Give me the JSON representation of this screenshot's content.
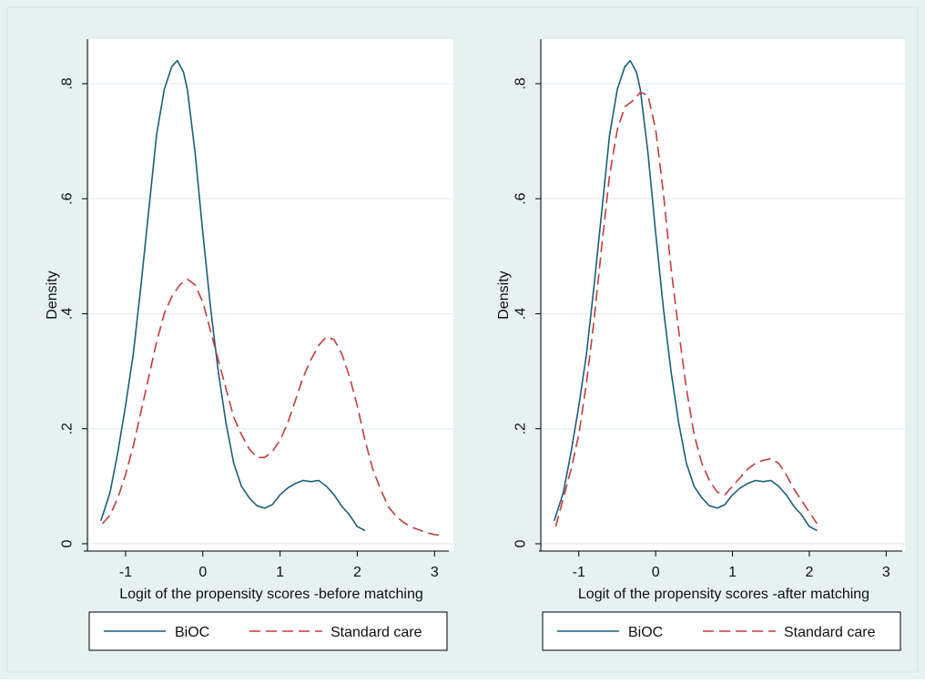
{
  "colors": {
    "outer_background": "#e6f2f2",
    "plot_background": "#ffffff",
    "grid": "#e3eeee",
    "axis": "#000000",
    "biocs": "#1a5f7a",
    "standard": "#c43c3c"
  },
  "chart_data": [
    {
      "type": "line",
      "xlabel": "Logit of the propensity scores -before matching",
      "ylabel": "Density",
      "xlim": [
        -1.4,
        3.15
      ],
      "ylim": [
        0,
        0.86
      ],
      "xticks": [
        -1,
        0,
        1,
        2,
        3
      ],
      "xtick_labels": [
        "-1",
        "0",
        "1",
        "2",
        "3"
      ],
      "yticks": [
        0,
        0.2,
        0.4,
        0.6,
        0.8
      ],
      "ytick_labels": [
        "0",
        ".2",
        ".4",
        ".6",
        ".8"
      ],
      "grid": true,
      "legend_position": "bottom",
      "series": [
        {
          "name": "BiOC",
          "style": "solid",
          "color": "#1a5f7a",
          "x": [
            -1.32,
            -1.2,
            -1.1,
            -1.0,
            -0.9,
            -0.8,
            -0.7,
            -0.6,
            -0.5,
            -0.4,
            -0.33,
            -0.25,
            -0.2,
            -0.1,
            0.0,
            0.1,
            0.2,
            0.3,
            0.4,
            0.5,
            0.6,
            0.7,
            0.8,
            0.9,
            1.0,
            1.1,
            1.2,
            1.3,
            1.4,
            1.5,
            1.6,
            1.7,
            1.8,
            1.9,
            2.0,
            2.1
          ],
          "y": [
            0.04,
            0.09,
            0.16,
            0.24,
            0.33,
            0.45,
            0.58,
            0.71,
            0.79,
            0.83,
            0.84,
            0.82,
            0.79,
            0.68,
            0.54,
            0.41,
            0.3,
            0.21,
            0.14,
            0.1,
            0.08,
            0.066,
            0.062,
            0.068,
            0.085,
            0.097,
            0.105,
            0.11,
            0.108,
            0.11,
            0.1,
            0.085,
            0.065,
            0.05,
            0.03,
            0.023
          ]
        },
        {
          "name": "Standard care",
          "style": "dashed",
          "color": "#c43c3c",
          "x": [
            -1.3,
            -1.2,
            -1.1,
            -1.0,
            -0.9,
            -0.8,
            -0.7,
            -0.6,
            -0.5,
            -0.4,
            -0.3,
            -0.2,
            -0.1,
            0.0,
            0.1,
            0.2,
            0.3,
            0.4,
            0.5,
            0.6,
            0.7,
            0.8,
            0.9,
            1.0,
            1.1,
            1.2,
            1.3,
            1.4,
            1.5,
            1.6,
            1.7,
            1.8,
            1.9,
            2.0,
            2.1,
            2.2,
            2.3,
            2.4,
            2.5,
            2.6,
            2.7,
            2.8,
            2.9,
            3.0,
            3.1
          ],
          "y": [
            0.035,
            0.05,
            0.08,
            0.12,
            0.17,
            0.23,
            0.29,
            0.35,
            0.4,
            0.43,
            0.45,
            0.46,
            0.45,
            0.42,
            0.37,
            0.32,
            0.27,
            0.22,
            0.19,
            0.165,
            0.15,
            0.15,
            0.16,
            0.18,
            0.21,
            0.25,
            0.29,
            0.32,
            0.345,
            0.36,
            0.355,
            0.33,
            0.29,
            0.24,
            0.18,
            0.13,
            0.095,
            0.065,
            0.048,
            0.037,
            0.029,
            0.024,
            0.019,
            0.016,
            0.014
          ]
        }
      ]
    },
    {
      "type": "line",
      "xlabel": "Logit of the propensity scores -after matching",
      "ylabel": "Density",
      "xlim": [
        -1.4,
        3.15
      ],
      "ylim": [
        0,
        0.86
      ],
      "xticks": [
        -1,
        0,
        1,
        2,
        3
      ],
      "xtick_labels": [
        "-1",
        "0",
        "1",
        "2",
        "3"
      ],
      "yticks": [
        0,
        0.2,
        0.4,
        0.6,
        0.8
      ],
      "ytick_labels": [
        "0",
        ".2",
        ".4",
        ".6",
        ".8"
      ],
      "grid": true,
      "legend_position": "bottom",
      "series": [
        {
          "name": "BiOC",
          "style": "solid",
          "color": "#1a5f7a",
          "x": [
            -1.32,
            -1.2,
            -1.1,
            -1.0,
            -0.9,
            -0.8,
            -0.7,
            -0.6,
            -0.5,
            -0.4,
            -0.33,
            -0.25,
            -0.2,
            -0.1,
            0.0,
            0.1,
            0.2,
            0.3,
            0.4,
            0.5,
            0.6,
            0.7,
            0.8,
            0.9,
            1.0,
            1.1,
            1.2,
            1.3,
            1.4,
            1.5,
            1.6,
            1.7,
            1.8,
            1.9,
            2.0,
            2.1
          ],
          "y": [
            0.04,
            0.09,
            0.16,
            0.24,
            0.33,
            0.45,
            0.58,
            0.71,
            0.79,
            0.83,
            0.84,
            0.82,
            0.79,
            0.68,
            0.54,
            0.41,
            0.3,
            0.21,
            0.14,
            0.1,
            0.08,
            0.066,
            0.062,
            0.068,
            0.085,
            0.097,
            0.105,
            0.11,
            0.108,
            0.11,
            0.1,
            0.085,
            0.065,
            0.05,
            0.03,
            0.023
          ]
        },
        {
          "name": "Standard care",
          "style": "dashed",
          "color": "#c43c3c",
          "x": [
            -1.3,
            -1.2,
            -1.1,
            -1.0,
            -0.9,
            -0.8,
            -0.7,
            -0.6,
            -0.5,
            -0.4,
            -0.3,
            -0.2,
            -0.1,
            0.0,
            0.1,
            0.2,
            0.3,
            0.4,
            0.5,
            0.6,
            0.7,
            0.8,
            0.9,
            1.0,
            1.1,
            1.2,
            1.3,
            1.4,
            1.5,
            1.6,
            1.7,
            1.8,
            1.9,
            2.0,
            2.1
          ],
          "y": [
            0.03,
            0.08,
            0.13,
            0.19,
            0.28,
            0.39,
            0.52,
            0.64,
            0.72,
            0.76,
            0.77,
            0.785,
            0.78,
            0.72,
            0.61,
            0.48,
            0.37,
            0.27,
            0.19,
            0.14,
            0.11,
            0.09,
            0.085,
            0.1,
            0.115,
            0.13,
            0.14,
            0.145,
            0.148,
            0.14,
            0.12,
            0.095,
            0.075,
            0.055,
            0.035
          ]
        }
      ]
    }
  ]
}
